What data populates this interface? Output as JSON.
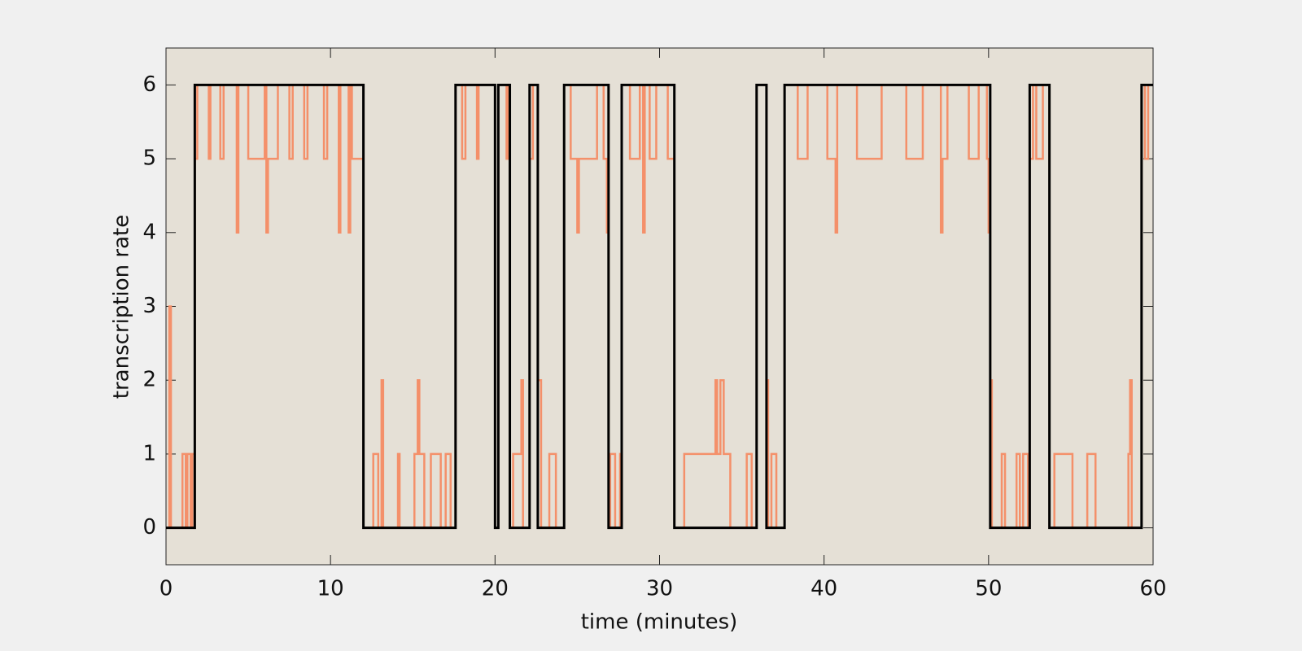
{
  "chart_data": {
    "type": "line",
    "step": "post",
    "xlabel": "time (minutes)",
    "ylabel": "transcription rate",
    "xlim": [
      0,
      60
    ],
    "xticks": [
      0,
      10,
      20,
      30,
      40,
      50,
      60
    ],
    "ylim": [
      -0.5,
      6.5
    ],
    "yticks": [
      0,
      1,
      2,
      3,
      4,
      5,
      6
    ],
    "background": "#e5e0d6",
    "series": [
      {
        "color": "#f4906a",
        "x": [
          0,
          0.2,
          0.3,
          1.0,
          1.2,
          1.3,
          1.5,
          1.6,
          1.75,
          1.9,
          2.6,
          2.7,
          3.3,
          3.5,
          4.3,
          4.4,
          5.0,
          6.0,
          6.1,
          6.2,
          6.8,
          7.5,
          7.7,
          8.4,
          8.6,
          9.6,
          9.8,
          10.5,
          10.6,
          11.1,
          11.2,
          11.3,
          12.0,
          12.6,
          12.9,
          13.1,
          13.2,
          14.1,
          14.2,
          15.1,
          15.3,
          15.4,
          15.7,
          16.1,
          16.7,
          17.0,
          17.3,
          17.6,
          18.0,
          18.2,
          18.9,
          19.0,
          20.0,
          20.2,
          20.7,
          20.8,
          20.9,
          21.1,
          21.6,
          21.7,
          22.1,
          22.3,
          22.6,
          22.8,
          23.3,
          23.7,
          24.2,
          24.6,
          25.0,
          25.1,
          26.2,
          26.6,
          26.8,
          26.9,
          27.0,
          27.3,
          27.6,
          27.7,
          28.2,
          28.8,
          29.0,
          29.1,
          29.4,
          29.8,
          30.5,
          30.9,
          31.5,
          33.4,
          33.5,
          33.7,
          33.9,
          34.3,
          35.3,
          35.6,
          35.9,
          36.5,
          36.6,
          36.8,
          37.1,
          37.6,
          38.4,
          39.0,
          40.2,
          40.7,
          40.8,
          42.0,
          43.5,
          45.0,
          46.0,
          47.1,
          47.2,
          47.5,
          48.8,
          49.4,
          49.9,
          50.0,
          50.1,
          50.2,
          50.8,
          51.0,
          51.7,
          51.9,
          52.1,
          52.4,
          52.5,
          52.7,
          52.9,
          53.3,
          53.7,
          54.0,
          55.1,
          56.0,
          56.5,
          58.5,
          58.6,
          58.7,
          59.3,
          59.5,
          59.7,
          60
        ],
        "values": [
          0,
          3,
          0,
          1,
          0,
          1,
          0,
          1,
          5,
          6,
          5,
          6,
          5,
          6,
          4,
          6,
          5,
          6,
          4,
          5,
          6,
          5,
          6,
          5,
          6,
          5,
          6,
          4,
          6,
          4,
          6,
          5,
          0,
          1,
          0,
          2,
          0,
          1,
          0,
          1,
          2,
          1,
          0,
          1,
          0,
          1,
          0,
          6,
          5,
          6,
          5,
          6,
          0,
          6,
          5,
          6,
          0,
          1,
          2,
          0,
          5,
          6,
          2,
          0,
          1,
          0,
          6,
          5,
          4,
          5,
          6,
          5,
          4,
          0,
          1,
          0,
          1,
          6,
          5,
          6,
          4,
          6,
          5,
          6,
          5,
          0,
          1,
          2,
          1,
          2,
          1,
          0,
          1,
          0,
          6,
          2,
          0,
          1,
          0,
          6,
          5,
          6,
          5,
          4,
          6,
          5,
          6,
          5,
          6,
          4,
          5,
          6,
          5,
          6,
          5,
          4,
          2,
          0,
          1,
          0,
          1,
          0,
          1,
          0,
          5,
          6,
          5,
          6,
          0,
          1,
          0,
          1,
          0,
          1,
          2,
          0,
          6,
          5,
          6,
          6
        ]
      },
      {
        "color": "#000000",
        "x": [
          0,
          1.75,
          12.0,
          17.6,
          20.0,
          20.2,
          20.9,
          22.1,
          22.6,
          24.2,
          26.9,
          27.7,
          30.9,
          35.9,
          36.5,
          37.6,
          50.1,
          52.5,
          53.7,
          59.3,
          60
        ],
        "values": [
          0,
          6,
          0,
          6,
          0,
          6,
          0,
          6,
          0,
          6,
          0,
          6,
          0,
          6,
          0,
          6,
          0,
          6,
          0,
          6,
          6
        ]
      }
    ]
  }
}
